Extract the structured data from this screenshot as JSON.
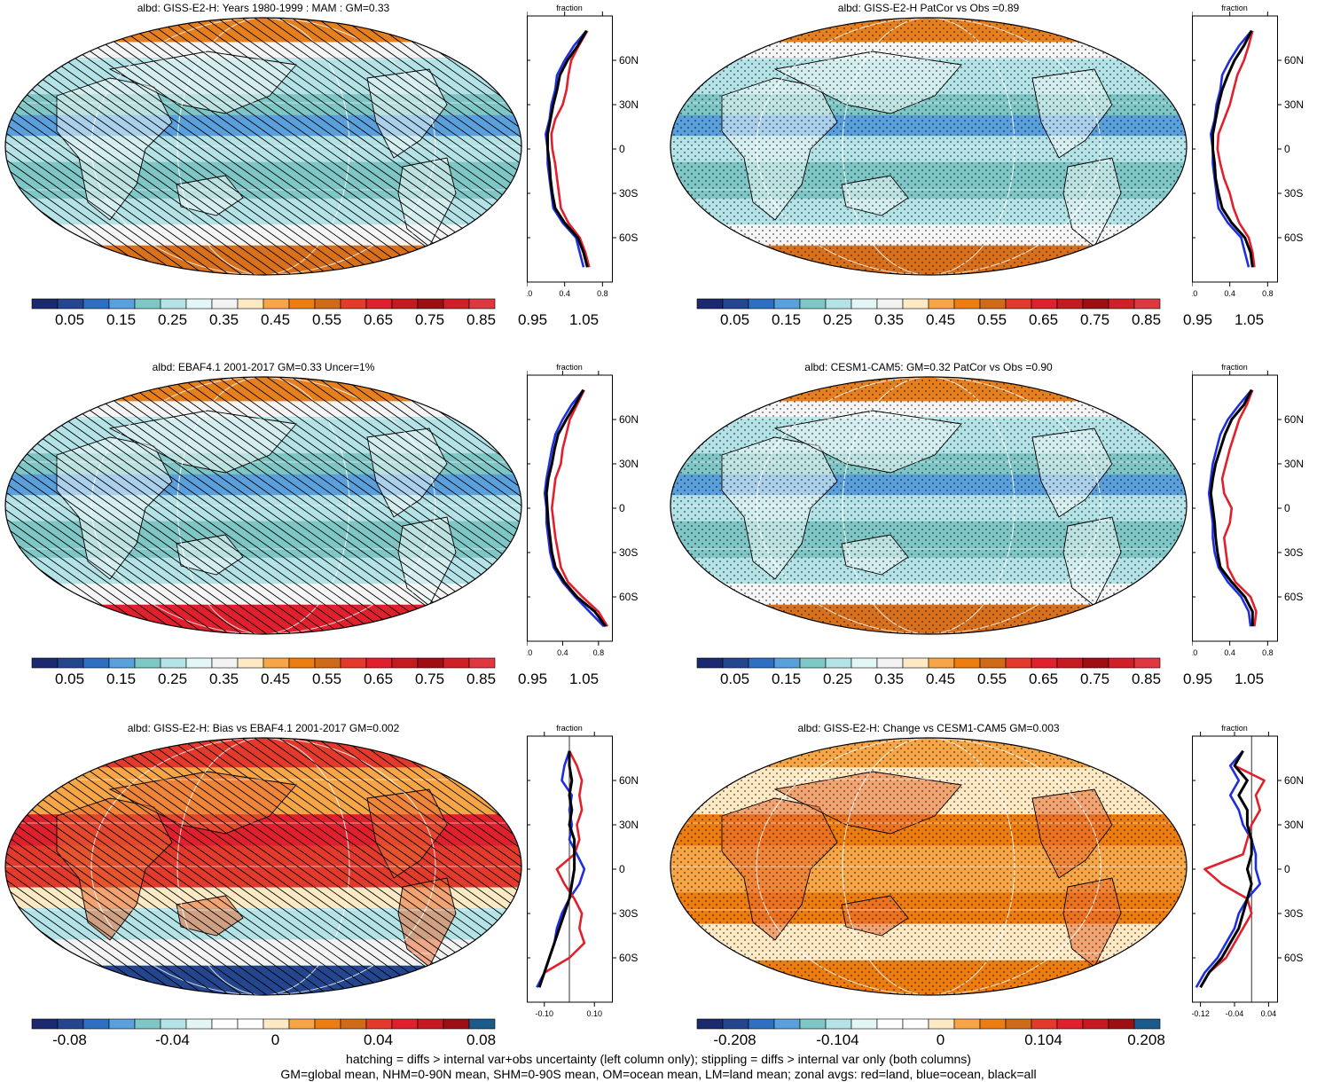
{
  "footer": {
    "line1": "hatching = diffs > internal var+obs uncertainty (left column only); stippling = diffs > internal var only (both columns)",
    "line2": "GM=global mean, NHM=0-90N mean, SHM=0-90S mean, OM=ocean mean, LM=land mean; zonal avgs: red=land, blue=ocean, black=all"
  },
  "colors": {
    "scale_abs": [
      "#1b2a6e",
      "#23468f",
      "#2f6fc1",
      "#5aa0dd",
      "#7fc6c6",
      "#b3e3e6",
      "#e2f6f6",
      "#f3f3f3",
      "#fde9c4",
      "#f6a646",
      "#ee7d10",
      "#cf6a19",
      "#e33a2c",
      "#e0202c",
      "#c51a1f",
      "#9e0e12",
      "#d01f26",
      "#e03840"
    ],
    "scale_diff": [
      "#1b2a6e",
      "#23468f",
      "#2f6fc1",
      "#5aa0dd",
      "#7fc6c6",
      "#b3e3e6",
      "#e2f6f6",
      "#ffffff",
      "#ffffff",
      "#fde9c4",
      "#f6a646",
      "#ee7d10",
      "#cf6a19",
      "#e33a2c",
      "#e0202c",
      "#c51a1f",
      "#9e0e12",
      "#1a5a8c"
    ],
    "land": "#e0202c",
    "ocean": "#1f2fe0",
    "all": "#000000"
  },
  "panels": [
    {
      "id": "p1",
      "title": "albd: GISS-E2-H: Years 1980-1999 : MAM : GM=0.33",
      "hatch": true,
      "stipple": false,
      "kind": "abs",
      "colorbar_labels": [
        "0.05",
        "0.15",
        "0.25",
        "0.35",
        "0.45",
        "0.55",
        "0.65",
        "0.75",
        "0.85",
        "0.95",
        "1.05"
      ],
      "zonal": {
        "title": "fraction",
        "lat_labels": [
          "60N",
          "30N",
          "0",
          "30S",
          "60S"
        ],
        "x_ticks": [
          "0.0",
          "0.4",
          "0.8"
        ],
        "xlim": [
          0.0,
          0.9
        ],
        "lat": [
          80,
          70,
          60,
          50,
          40,
          30,
          20,
          10,
          0,
          -10,
          -20,
          -30,
          -40,
          -50,
          -60,
          -70,
          -80
        ],
        "land": [
          0.64,
          0.55,
          0.47,
          0.44,
          0.42,
          0.38,
          0.3,
          0.26,
          0.27,
          0.3,
          0.32,
          0.34,
          0.36,
          0.44,
          0.56,
          0.62,
          0.66
        ],
        "ocean": [
          0.63,
          0.5,
          0.4,
          0.32,
          0.3,
          0.26,
          0.24,
          0.2,
          0.22,
          0.22,
          0.24,
          0.26,
          0.28,
          0.38,
          0.52,
          0.56,
          0.6
        ],
        "all": [
          0.63,
          0.54,
          0.43,
          0.35,
          0.32,
          0.28,
          0.25,
          0.22,
          0.22,
          0.24,
          0.25,
          0.27,
          0.3,
          0.4,
          0.54,
          0.6,
          0.64
        ]
      }
    },
    {
      "id": "p2",
      "title": "albd: GISS-E2-H PatCor vs Obs =0.89",
      "hatch": false,
      "stipple": true,
      "kind": "abs",
      "colorbar_labels": [
        "0.05",
        "0.15",
        "0.25",
        "0.35",
        "0.45",
        "0.55",
        "0.65",
        "0.75",
        "0.85",
        "0.95",
        "1.05"
      ],
      "zonal": {
        "title": "fraction",
        "lat_labels": [
          "60N",
          "30N",
          "0",
          "30S",
          "60S"
        ],
        "x_ticks": [
          "0.0",
          "0.4",
          "0.8"
        ],
        "xlim": [
          0.0,
          0.9
        ],
        "lat": [
          80,
          70,
          60,
          50,
          40,
          30,
          20,
          10,
          0,
          -10,
          -20,
          -30,
          -40,
          -50,
          -60,
          -70,
          -80
        ],
        "land": [
          0.64,
          0.6,
          0.55,
          0.48,
          0.44,
          0.4,
          0.34,
          0.28,
          0.27,
          0.3,
          0.34,
          0.4,
          0.44,
          0.5,
          0.6,
          0.64,
          0.66
        ],
        "ocean": [
          0.63,
          0.5,
          0.4,
          0.32,
          0.3,
          0.26,
          0.24,
          0.2,
          0.22,
          0.22,
          0.24,
          0.26,
          0.28,
          0.38,
          0.52,
          0.56,
          0.6
        ],
        "all": [
          0.63,
          0.55,
          0.45,
          0.38,
          0.32,
          0.28,
          0.25,
          0.22,
          0.22,
          0.24,
          0.25,
          0.28,
          0.32,
          0.42,
          0.56,
          0.62,
          0.64
        ]
      }
    },
    {
      "id": "p3",
      "title": "albd: EBAF4.1 2001-2017 GM=0.33 Uncer=1%",
      "hatch": true,
      "stipple": false,
      "kind": "abs",
      "colorbar_labels": [
        "0.05",
        "0.15",
        "0.25",
        "0.35",
        "0.45",
        "0.55",
        "0.65",
        "0.75",
        "0.85",
        "0.95",
        "1.05"
      ],
      "zonal": {
        "title": "fraction",
        "lat_labels": [
          "60N",
          "30N",
          "0",
          "30S",
          "60S"
        ],
        "x_ticks": [
          "0.0",
          "0.4",
          "0.8"
        ],
        "xlim": [
          0.0,
          0.95
        ],
        "lat": [
          80,
          70,
          60,
          50,
          40,
          30,
          20,
          10,
          0,
          -10,
          -20,
          -30,
          -40,
          -50,
          -60,
          -70,
          -80
        ],
        "land": [
          0.64,
          0.56,
          0.48,
          0.44,
          0.4,
          0.38,
          0.32,
          0.3,
          0.28,
          0.3,
          0.32,
          0.35,
          0.38,
          0.46,
          0.62,
          0.8,
          0.9
        ],
        "ocean": [
          0.63,
          0.5,
          0.4,
          0.32,
          0.28,
          0.25,
          0.22,
          0.2,
          0.22,
          0.22,
          0.24,
          0.26,
          0.3,
          0.4,
          0.54,
          0.7,
          0.86
        ],
        "all": [
          0.63,
          0.54,
          0.44,
          0.35,
          0.31,
          0.28,
          0.24,
          0.22,
          0.23,
          0.24,
          0.26,
          0.28,
          0.32,
          0.42,
          0.56,
          0.76,
          0.88
        ]
      }
    },
    {
      "id": "p4",
      "title": "albd: CESM1-CAM5: GM=0.32 PatCor vs Obs =0.90",
      "hatch": false,
      "stipple": true,
      "kind": "abs",
      "colorbar_labels": [
        "0.05",
        "0.15",
        "0.25",
        "0.35",
        "0.45",
        "0.55",
        "0.65",
        "0.75",
        "0.85",
        "0.95",
        "1.05"
      ],
      "zonal": {
        "title": "fraction",
        "lat_labels": [
          "60N",
          "30N",
          "0",
          "30S",
          "60S"
        ],
        "x_ticks": [
          "0.0",
          "0.4",
          "0.8"
        ],
        "xlim": [
          0.0,
          0.9
        ],
        "lat": [
          80,
          70,
          60,
          50,
          40,
          30,
          20,
          10,
          0,
          -10,
          -20,
          -30,
          -40,
          -50,
          -60,
          -70,
          -80
        ],
        "land": [
          0.64,
          0.58,
          0.5,
          0.45,
          0.4,
          0.36,
          0.32,
          0.34,
          0.42,
          0.4,
          0.34,
          0.36,
          0.38,
          0.46,
          0.62,
          0.68,
          0.66
        ],
        "ocean": [
          0.63,
          0.5,
          0.38,
          0.3,
          0.26,
          0.22,
          0.2,
          0.18,
          0.2,
          0.22,
          0.22,
          0.24,
          0.28,
          0.38,
          0.52,
          0.6,
          0.62
        ],
        "all": [
          0.63,
          0.55,
          0.42,
          0.35,
          0.3,
          0.25,
          0.22,
          0.2,
          0.22,
          0.24,
          0.25,
          0.27,
          0.3,
          0.42,
          0.56,
          0.64,
          0.64
        ]
      }
    },
    {
      "id": "p5",
      "title": "albd: GISS-E2-H: Bias vs EBAF4.1 2001-2017 GM=0.002",
      "hatch": true,
      "stipple": false,
      "kind": "diff",
      "colorbar_labels": [
        "-0.08",
        "-0.04",
        "0",
        "0.04",
        "0.08"
      ],
      "zonal": {
        "title": "fraction",
        "lat_labels": [
          "60N",
          "30N",
          "0",
          "30S",
          "60S"
        ],
        "x_ticks": [
          "-0.10",
          "0.10"
        ],
        "xlim": [
          -0.17,
          0.17
        ],
        "lat": [
          80,
          70,
          60,
          50,
          40,
          30,
          20,
          10,
          0,
          -10,
          -20,
          -30,
          -40,
          -50,
          -60,
          -70,
          -80
        ],
        "land": [
          0.0,
          0.03,
          0.05,
          0.04,
          0.05,
          0.03,
          0.04,
          0.02,
          -0.05,
          -0.02,
          0.02,
          0.05,
          0.04,
          0.06,
          0.0,
          -0.1,
          -0.12
        ],
        "ocean": [
          0.0,
          -0.02,
          -0.03,
          0.01,
          0.0,
          0.01,
          0.0,
          0.03,
          0.06,
          0.04,
          0.0,
          -0.03,
          -0.05,
          -0.06,
          -0.08,
          -0.1,
          -0.13
        ],
        "all": [
          0.0,
          0.0,
          0.01,
          0.0,
          0.01,
          0.0,
          0.02,
          0.02,
          0.02,
          0.01,
          0.0,
          -0.02,
          -0.04,
          -0.06,
          -0.08,
          -0.1,
          -0.12
        ]
      }
    },
    {
      "id": "p6",
      "title": "albd: GISS-E2-H: Change vs CESM1-CAM5 GM=0.003",
      "hatch": false,
      "stipple": true,
      "kind": "diff",
      "colorbar_labels": [
        "-0.208",
        "-0.104",
        "0",
        "0.104",
        "0.208"
      ],
      "zonal": {
        "title": "fraction",
        "lat_labels": [
          "60N",
          "30N",
          "0",
          "30S",
          "60S"
        ],
        "x_ticks": [
          "-0.12",
          "-0.04",
          "0.04"
        ],
        "xlim": [
          -0.14,
          0.06
        ],
        "lat": [
          80,
          70,
          60,
          50,
          40,
          30,
          20,
          10,
          0,
          -10,
          -20,
          -30,
          -40,
          -50,
          -60,
          -70,
          -80
        ],
        "land": [
          -0.02,
          -0.04,
          0.03,
          0.01,
          0.02,
          0.0,
          -0.01,
          -0.02,
          -0.11,
          -0.07,
          -0.01,
          0.0,
          -0.02,
          -0.04,
          -0.06,
          -0.1,
          -0.12
        ],
        "ocean": [
          -0.02,
          -0.05,
          -0.03,
          -0.05,
          -0.03,
          -0.02,
          0.0,
          0.01,
          0.01,
          0.02,
          -0.01,
          -0.03,
          -0.04,
          -0.06,
          -0.08,
          -0.11,
          -0.13
        ],
        "all": [
          -0.02,
          -0.04,
          -0.01,
          -0.03,
          -0.01,
          -0.01,
          0.0,
          0.0,
          -0.01,
          0.0,
          -0.01,
          -0.02,
          -0.03,
          -0.05,
          -0.07,
          -0.1,
          -0.12
        ]
      }
    }
  ]
}
